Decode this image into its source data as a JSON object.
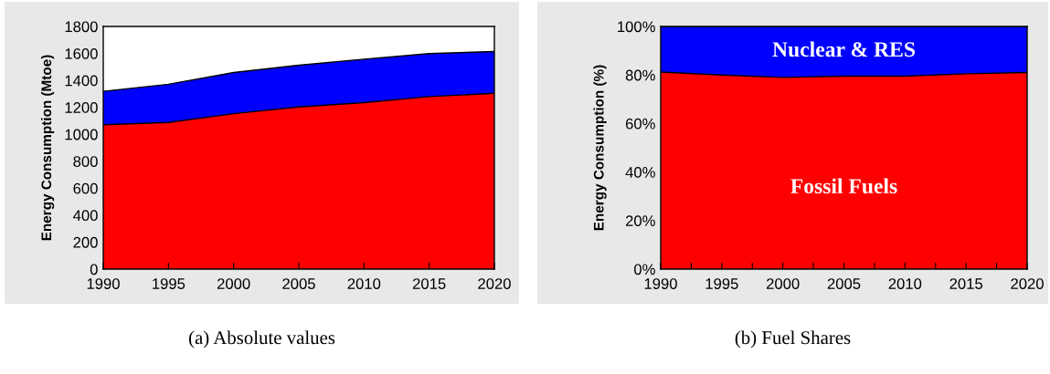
{
  "chart_data": [
    {
      "type": "area",
      "stacked": true,
      "title": "(a) Absolute values",
      "ylabel": "Energy Consumption (Mtoe)",
      "x": [
        1990,
        1995,
        2000,
        2005,
        2010,
        2015,
        2020
      ],
      "series": [
        {
          "color": "#ff0000",
          "values": [
            1071,
            1088,
            1153,
            1203,
            1235,
            1280,
            1304
          ]
        },
        {
          "color": "#0000ff",
          "values": [
            248,
            283,
            305,
            309,
            322,
            319,
            310
          ]
        }
      ],
      "xlim": [
        1990,
        2020
      ],
      "xticks": [
        1990,
        1995,
        2000,
        2005,
        2010,
        2015,
        2020
      ],
      "ylim": [
        0,
        1800
      ],
      "yticks": [
        0,
        200,
        400,
        600,
        800,
        1000,
        1200,
        1400,
        1600,
        1800
      ],
      "grid": false,
      "legend": false
    },
    {
      "type": "area",
      "stacked": true,
      "title": "(b) Fuel Shares",
      "ylabel": "Energy Consumption (%)",
      "x": [
        1990,
        1995,
        2000,
        2005,
        2010,
        2015,
        2020
      ],
      "series": [
        {
          "name": "Fossil Fuels",
          "color": "#ff0000",
          "values": [
            81.2,
            80,
            79,
            79.5,
            79.5,
            80.5,
            81
          ]
        },
        {
          "name": "Nuclear & RES",
          "color": "#0000ff",
          "values": [
            18.8,
            20,
            21,
            20.5,
            20.5,
            19.5,
            19
          ]
        }
      ],
      "xlim": [
        1990,
        2020
      ],
      "xticks": [
        1990,
        {
          "value": 1992.5,
          "label": null
        },
        1995,
        {
          "value": 1997.5,
          "label": null
        },
        2000,
        {
          "value": 2002.5,
          "label": null
        },
        2005,
        {
          "value": 2007.5,
          "label": null
        },
        2010,
        {
          "value": 2012.5,
          "label": null
        },
        2015,
        {
          "value": 2017.5,
          "label": null
        },
        2020
      ],
      "ylim": [
        0,
        100
      ],
      "yticks": [
        {
          "value": 0,
          "label": "0%"
        },
        {
          "value": 20,
          "label": "20%"
        },
        {
          "value": 40,
          "label": "40%"
        },
        {
          "value": 60,
          "label": "60%"
        },
        {
          "value": 80,
          "label": "80%"
        },
        {
          "value": 100,
          "label": "100%"
        }
      ],
      "grid": false,
      "legend": false
    }
  ]
}
